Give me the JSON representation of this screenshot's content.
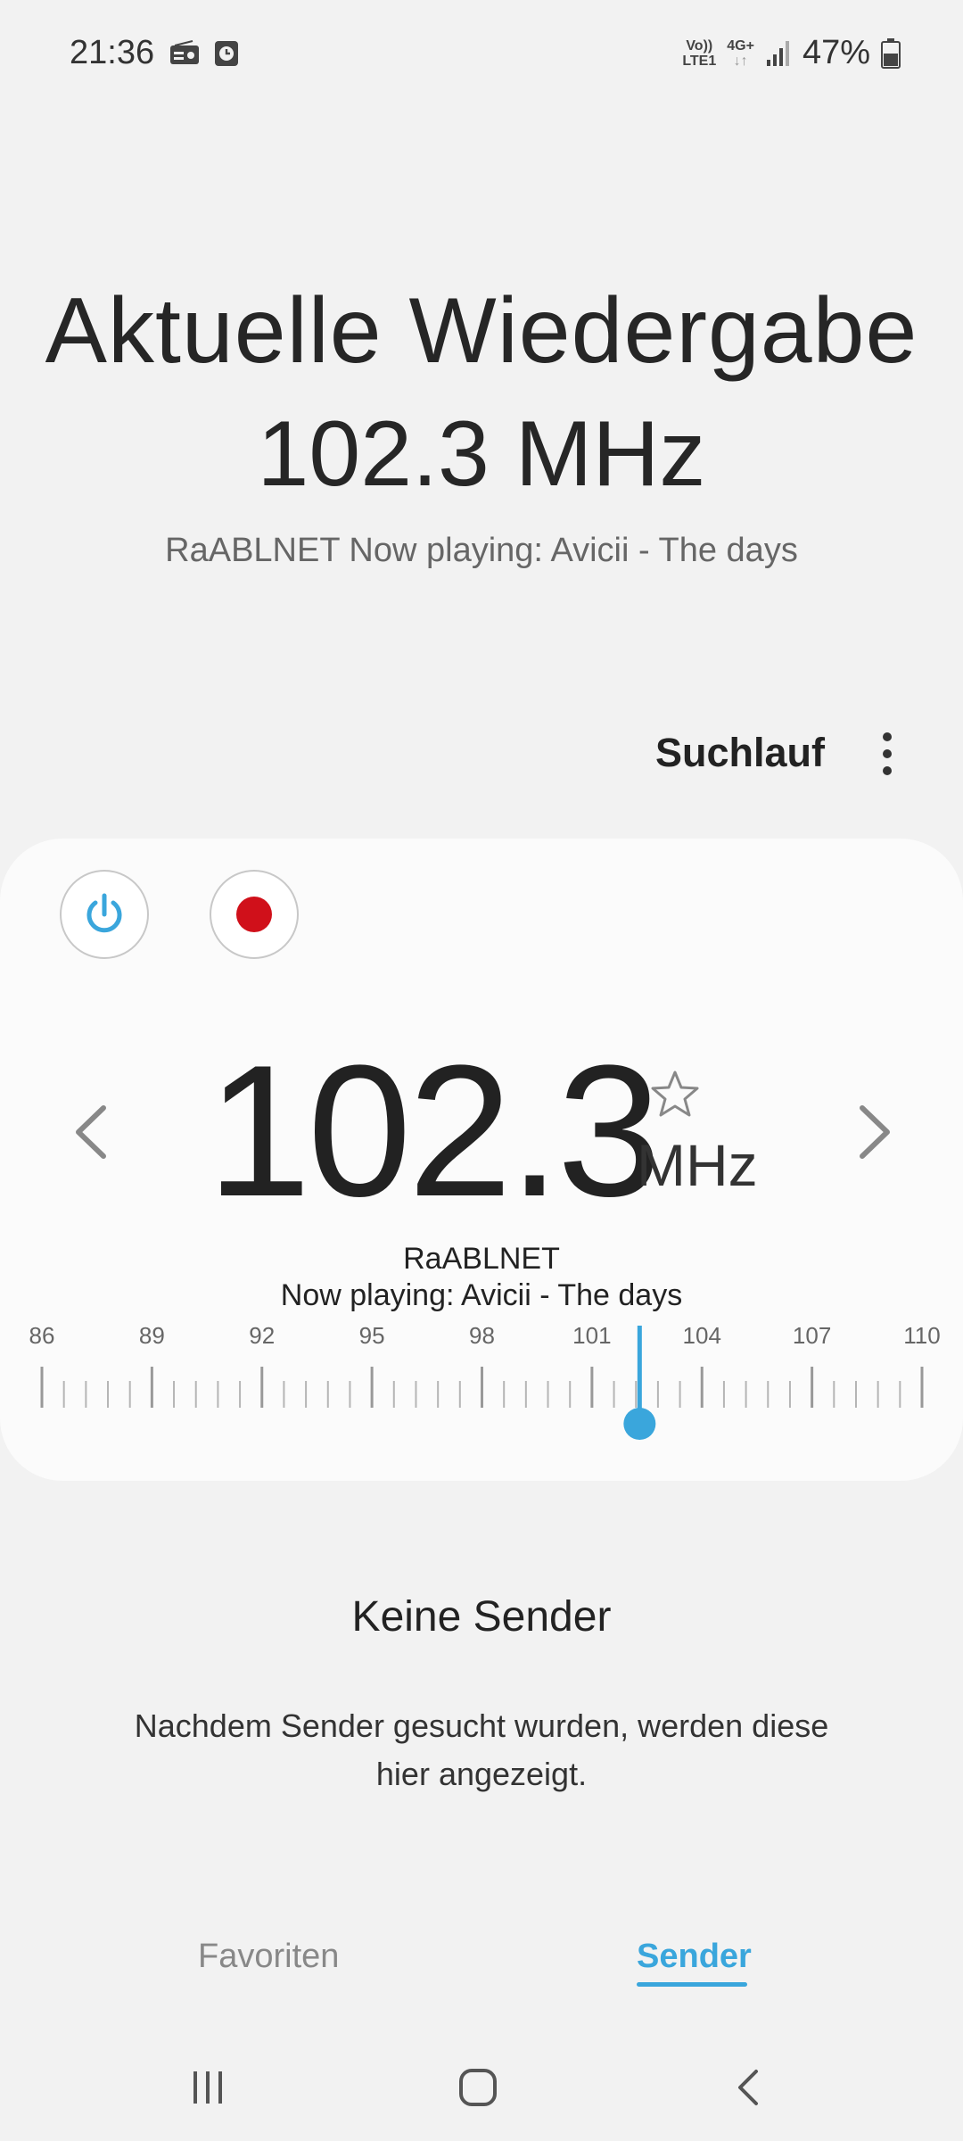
{
  "status_bar": {
    "time": "21:36",
    "icons": [
      "radio-icon",
      "clock-icon"
    ],
    "volte_top": "Vo))",
    "volte_bottom": "LTE1",
    "network": "4G+",
    "battery": "47%"
  },
  "header": {
    "title": "Aktuelle Wiedergabe",
    "frequency": "102.3 MHz",
    "station_info": "RaABLNET Now playing: Avicii - The days"
  },
  "toolbar": {
    "scan_label": "Suchlauf",
    "more_icon": "more-vert-icon"
  },
  "player": {
    "frequency": "102.3",
    "unit": "MHz",
    "rds_name": "RaABLNET",
    "rds_text": "Now playing: Avicii - The days",
    "power_color": "#3aa6dc",
    "record_color": "#d0101a"
  },
  "dial": {
    "labels": [
      "86",
      "89",
      "92",
      "95",
      "98",
      "101",
      "104",
      "107",
      "110"
    ],
    "min": 86,
    "max": 110,
    "current": 102.3,
    "accent": "#3aa6dc"
  },
  "empty": {
    "title": "Keine Sender",
    "description": "Nachdem Sender gesucht wurden, werden diese hier angezeigt."
  },
  "tabs": [
    {
      "label": "Favoriten",
      "active": false
    },
    {
      "label": "Sender",
      "active": true
    }
  ],
  "navbar": {
    "icons": [
      "recent-apps-icon",
      "home-icon",
      "back-icon"
    ]
  }
}
